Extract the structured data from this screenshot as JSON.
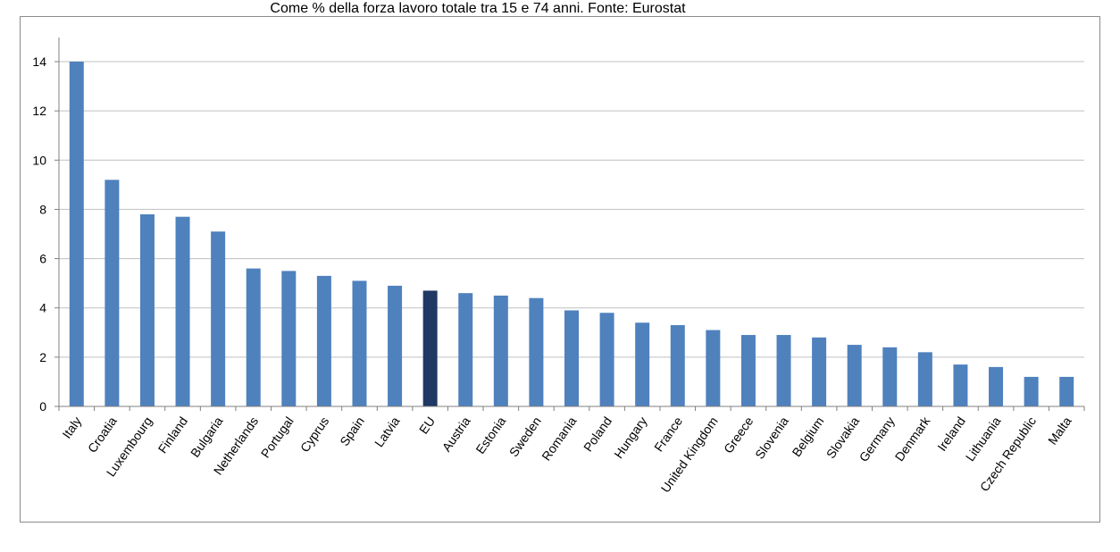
{
  "chart_data": {
    "type": "bar",
    "subtitle": "Come % della forza lavoro totale tra 15 e 74 anni. Fonte: Eurostat",
    "categories": [
      "Italy",
      "Croatia",
      "Luxembourg",
      "Finland",
      "Bulgaria",
      "Netherlands",
      "Portugal",
      "Cyprus",
      "Spain",
      "Latvia",
      "EU",
      "Austria",
      "Estonia",
      "Sweden",
      "Romania",
      "Poland",
      "Hungary",
      "France",
      "United Kingdom",
      "Greece",
      "Slovenia",
      "Belgium",
      "Slovakia",
      "Germany",
      "Denmark",
      "Ireland",
      "Lithuania",
      "Czech Republic",
      "Malta"
    ],
    "values": [
      14.0,
      9.2,
      7.8,
      7.7,
      7.1,
      5.6,
      5.5,
      5.3,
      5.1,
      4.9,
      4.7,
      4.6,
      4.5,
      4.4,
      3.9,
      3.8,
      3.4,
      3.3,
      3.1,
      2.9,
      2.9,
      2.8,
      2.5,
      2.4,
      2.2,
      1.7,
      1.6,
      1.2,
      1.2
    ],
    "highlight_category": "EU",
    "ylim": [
      0,
      15
    ],
    "yticks": [
      0,
      2,
      4,
      6,
      8,
      10,
      12,
      14
    ],
    "grid": true,
    "legend": "none",
    "colors": {
      "bar": "#4f81bd",
      "highlight": "#1f3864",
      "grid": "#c0c0c0",
      "axis": "#808080"
    }
  }
}
